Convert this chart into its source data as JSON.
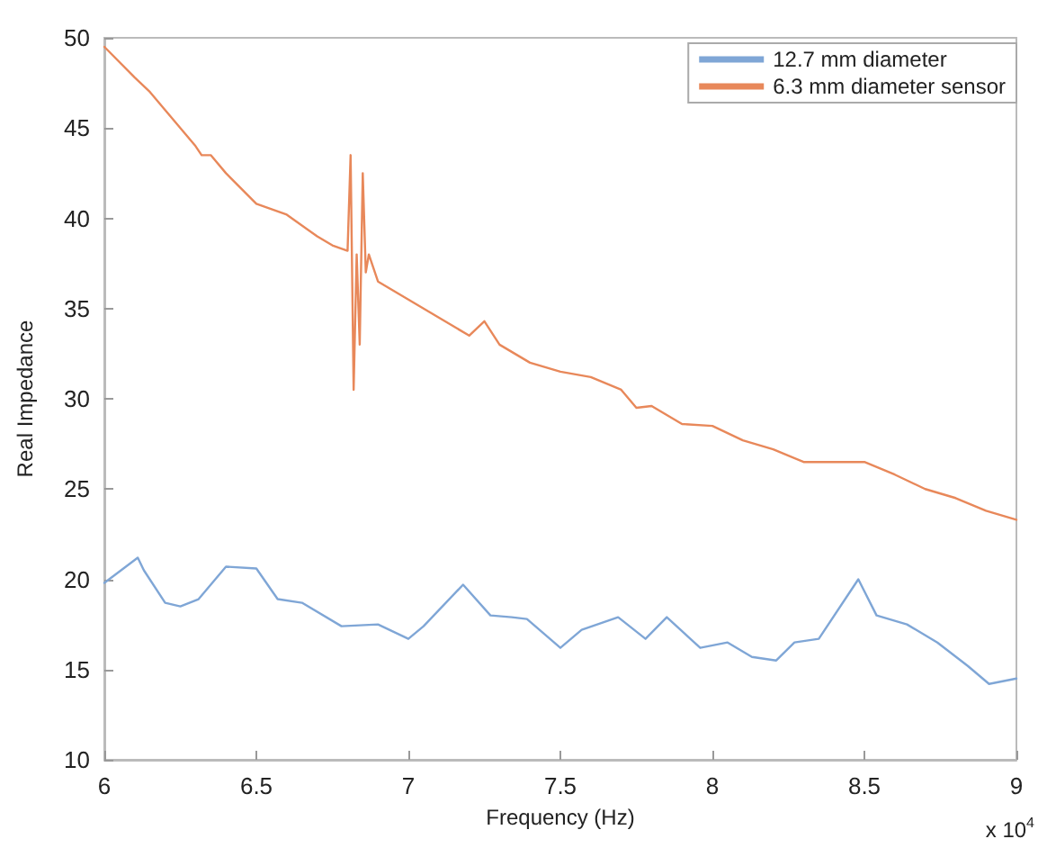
{
  "chart_data": {
    "type": "line",
    "xlabel": "Frequency (Hz)",
    "ylabel": "Real Impedance",
    "xlim": [
      6,
      9
    ],
    "xticks": [
      6,
      6.5,
      7,
      7.5,
      8,
      8.5,
      9
    ],
    "ylim": [
      10,
      50
    ],
    "yticks": [
      10,
      15,
      20,
      25,
      30,
      35,
      40,
      45,
      50
    ],
    "grid": false,
    "legend": "top right",
    "marker": "none",
    "line_style": "solid",
    "annotations": [
      "x 10$^{4}$"
    ],
    "series": [
      {
        "name": "12.7 mm diameter",
        "color": "#7fa6d6",
        "x": [
          6.0,
          6.11,
          6.13,
          6.2,
          6.25,
          6.31,
          6.4,
          6.5,
          6.57,
          6.65,
          6.78,
          6.9,
          7.0,
          7.05,
          7.18,
          7.27,
          7.34,
          7.39,
          7.5,
          7.57,
          7.69,
          7.78,
          7.85,
          7.96,
          8.05,
          8.13,
          8.21,
          8.27,
          8.35,
          8.48,
          8.54,
          8.64,
          8.74,
          8.84,
          8.91,
          9.0
        ],
        "values": [
          19.8,
          21.2,
          20.5,
          18.7,
          18.5,
          18.9,
          20.7,
          20.6,
          18.9,
          18.7,
          17.4,
          17.5,
          16.7,
          17.4,
          19.7,
          18.0,
          17.9,
          17.8,
          16.2,
          17.2,
          17.9,
          16.7,
          17.9,
          16.2,
          16.5,
          15.7,
          15.5,
          16.5,
          16.7,
          20.0,
          18.0,
          17.5,
          16.5,
          15.2,
          14.2,
          14.5
        ]
      },
      {
        "name": "6.3 mm diameter sensor",
        "color": "#e8885a",
        "x": [
          6.0,
          6.1,
          6.15,
          6.2,
          6.3,
          6.32,
          6.35,
          6.4,
          6.5,
          6.6,
          6.7,
          6.75,
          6.8,
          6.81,
          6.82,
          6.83,
          6.84,
          6.85,
          6.86,
          6.87,
          6.9,
          7.0,
          7.1,
          7.2,
          7.25,
          7.3,
          7.4,
          7.5,
          7.6,
          7.7,
          7.75,
          7.8,
          7.9,
          8.0,
          8.1,
          8.2,
          8.3,
          8.4,
          8.5,
          8.6,
          8.7,
          8.8,
          8.9,
          9.0
        ],
        "values": [
          49.5,
          47.8,
          47,
          46,
          44,
          43.5,
          43.5,
          42.5,
          40.8,
          40.2,
          39.0,
          38.5,
          38.2,
          43.5,
          30.5,
          38,
          33,
          42.5,
          37,
          38,
          36.5,
          35.5,
          34.5,
          33.5,
          34.3,
          33.0,
          32.0,
          31.5,
          31.2,
          30.5,
          29.5,
          29.6,
          28.6,
          28.5,
          27.7,
          27.2,
          26.5,
          26.5,
          26.5,
          25.8,
          25,
          24.5,
          23.8,
          23.3
        ]
      }
    ]
  }
}
